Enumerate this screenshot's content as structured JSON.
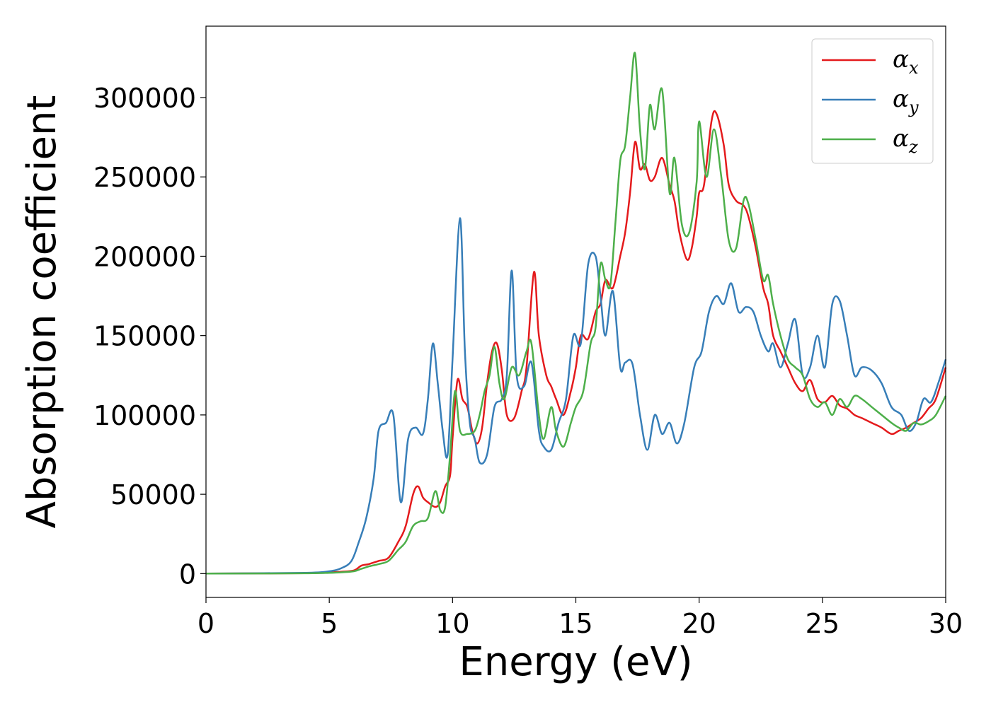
{
  "chart_data": {
    "type": "line",
    "title": "",
    "xlabel": "Energy (eV)",
    "ylabel": "Absorption coefficient",
    "xlim": [
      0,
      30
    ],
    "ylim": [
      -15000,
      345000
    ],
    "xticks": [
      0,
      5,
      10,
      15,
      20,
      25,
      30
    ],
    "xtick_labels": [
      "0",
      "5",
      "10",
      "15",
      "20",
      "25",
      "30"
    ],
    "yticks": [
      0,
      50000,
      100000,
      150000,
      200000,
      250000,
      300000
    ],
    "ytick_labels": [
      "0",
      "50000",
      "100000",
      "150000",
      "200000",
      "250000",
      "300000"
    ],
    "grid": false,
    "legend_position": "top-right",
    "series": [
      {
        "name": "α",
        "subscript": "x",
        "color": "#e41a1c",
        "x": [
          0,
          4,
          5,
          5.5,
          6,
          6.3,
          6.6,
          7,
          7.4,
          7.8,
          8.1,
          8.4,
          8.6,
          8.8,
          9,
          9.3,
          9.5,
          9.7,
          9.9,
          10,
          10.2,
          10.4,
          10.6,
          10.8,
          11,
          11.2,
          11.4,
          11.6,
          11.8,
          12,
          12.2,
          12.5,
          12.8,
          13,
          13.3,
          13.5,
          13.8,
          14,
          14.2,
          14.5,
          14.8,
          15,
          15.2,
          15.5,
          15.8,
          16,
          16.2,
          16.5,
          16.8,
          17,
          17.2,
          17.4,
          17.6,
          17.8,
          18,
          18.2,
          18.5,
          18.8,
          19,
          19.2,
          19.5,
          19.7,
          19.9,
          20,
          20.2,
          20.5,
          20.7,
          21,
          21.2,
          21.5,
          21.8,
          22,
          22.3,
          22.6,
          22.8,
          23,
          23.3,
          23.6,
          23.9,
          24.2,
          24.5,
          24.8,
          25.1,
          25.4,
          25.7,
          26,
          26.3,
          26.6,
          27,
          27.4,
          27.8,
          28.1,
          28.4,
          28.7,
          29,
          29.3,
          29.6,
          30
        ],
        "values": [
          0,
          300,
          800,
          1200,
          2000,
          5000,
          6000,
          8000,
          10000,
          20000,
          30000,
          50000,
          55000,
          48000,
          45000,
          42000,
          45000,
          55000,
          62000,
          85000,
          122000,
          110000,
          105000,
          90000,
          82000,
          92000,
          120000,
          140000,
          145000,
          128000,
          100000,
          98000,
          115000,
          130000,
          190000,
          150000,
          125000,
          118000,
          110000,
          100000,
          115000,
          130000,
          150000,
          148000,
          165000,
          170000,
          185000,
          180000,
          200000,
          215000,
          240000,
          272000,
          255000,
          258000,
          248000,
          250000,
          262000,
          245000,
          235000,
          215000,
          198000,
          205000,
          225000,
          240000,
          245000,
          285000,
          290000,
          270000,
          245000,
          235000,
          232000,
          225000,
          205000,
          180000,
          170000,
          150000,
          140000,
          130000,
          120000,
          115000,
          122000,
          110000,
          108000,
          112000,
          106000,
          104000,
          100000,
          98000,
          95000,
          92000,
          88000,
          90000,
          92000,
          95000,
          98000,
          104000,
          110000,
          130000
        ]
      },
      {
        "name": "α",
        "subscript": "y",
        "color": "#377eb8",
        "x": [
          0,
          4,
          5,
          5.5,
          5.9,
          6.2,
          6.5,
          6.8,
          7,
          7.3,
          7.6,
          7.9,
          8.2,
          8.5,
          8.8,
          9,
          9.2,
          9.4,
          9.6,
          9.8,
          10,
          10.3,
          10.5,
          10.7,
          10.9,
          11.1,
          11.4,
          11.7,
          12,
          12.2,
          12.4,
          12.6,
          12.9,
          13.2,
          13.5,
          13.7,
          14,
          14.3,
          14.6,
          14.9,
          15.2,
          15.5,
          15.8,
          16,
          16.2,
          16.5,
          16.8,
          17,
          17.3,
          17.6,
          17.9,
          18.2,
          18.5,
          18.8,
          19.1,
          19.4,
          19.8,
          20.1,
          20.4,
          20.7,
          21,
          21.3,
          21.6,
          21.9,
          22.2,
          22.5,
          22.8,
          23,
          23.3,
          23.6,
          23.9,
          24.2,
          24.5,
          24.8,
          25.1,
          25.4,
          25.7,
          26,
          26.3,
          26.6,
          27,
          27.4,
          27.8,
          28.2,
          28.5,
          28.8,
          29.1,
          29.4,
          29.7,
          30
        ],
        "values": [
          0,
          500,
          1500,
          3500,
          8000,
          20000,
          35000,
          60000,
          90000,
          95000,
          100000,
          45000,
          85000,
          92000,
          88000,
          110000,
          145000,
          120000,
          90000,
          75000,
          135000,
          224000,
          140000,
          95000,
          85000,
          70000,
          75000,
          105000,
          110000,
          125000,
          191000,
          125000,
          118000,
          133000,
          90000,
          80000,
          78000,
          95000,
          110000,
          150000,
          145000,
          195000,
          200000,
          175000,
          150000,
          178000,
          130000,
          133000,
          132000,
          100000,
          78000,
          100000,
          88000,
          95000,
          82000,
          95000,
          130000,
          140000,
          165000,
          175000,
          170000,
          183000,
          165000,
          168000,
          165000,
          150000,
          140000,
          145000,
          130000,
          145000,
          160000,
          125000,
          130000,
          150000,
          130000,
          170000,
          172000,
          150000,
          125000,
          130000,
          128000,
          120000,
          105000,
          100000,
          90000,
          95000,
          110000,
          108000,
          120000,
          135000
        ]
      },
      {
        "name": "α",
        "subscript": "z",
        "color": "#4daf4a",
        "x": [
          0,
          4,
          5,
          5.5,
          6,
          6.3,
          6.6,
          7,
          7.4,
          7.8,
          8.1,
          8.4,
          8.7,
          9,
          9.3,
          9.5,
          9.7,
          9.9,
          10.1,
          10.3,
          10.6,
          10.9,
          11.1,
          11.3,
          11.5,
          11.7,
          11.9,
          12.1,
          12.4,
          12.7,
          13,
          13.2,
          13.5,
          13.7,
          14,
          14.2,
          14.5,
          14.8,
          15,
          15.3,
          15.6,
          15.8,
          16,
          16.2,
          16.4,
          16.6,
          16.8,
          17,
          17.2,
          17.4,
          17.6,
          17.8,
          18,
          18.2,
          18.5,
          18.8,
          19,
          19.3,
          19.6,
          19.9,
          20,
          20.3,
          20.6,
          20.9,
          21.2,
          21.5,
          21.8,
          22,
          22.3,
          22.6,
          22.8,
          23,
          23.3,
          23.6,
          23.9,
          24.2,
          24.5,
          24.8,
          25.1,
          25.4,
          25.7,
          26,
          26.3,
          26.6,
          27,
          27.4,
          27.8,
          28.1,
          28.4,
          28.7,
          29,
          29.3,
          29.6,
          30
        ],
        "values": [
          0,
          200,
          500,
          800,
          1500,
          3000,
          4500,
          6000,
          8000,
          15000,
          20000,
          30000,
          33000,
          35000,
          52000,
          40000,
          42000,
          75000,
          115000,
          90000,
          88000,
          90000,
          100000,
          115000,
          125000,
          143000,
          120000,
          110000,
          130000,
          125000,
          140000,
          145000,
          100000,
          85000,
          105000,
          90000,
          80000,
          95000,
          105000,
          115000,
          145000,
          155000,
          195000,
          185000,
          182000,
          220000,
          260000,
          270000,
          300000,
          328000,
          280000,
          255000,
          295000,
          280000,
          305000,
          240000,
          262000,
          220000,
          215000,
          247000,
          285000,
          250000,
          280000,
          250000,
          210000,
          205000,
          235000,
          233000,
          210000,
          185000,
          188000,
          170000,
          150000,
          135000,
          130000,
          125000,
          110000,
          105000,
          108000,
          100000,
          110000,
          105000,
          112000,
          110000,
          105000,
          100000,
          95000,
          92000,
          90000,
          95000,
          94000,
          96000,
          100000,
          112000
        ]
      }
    ]
  }
}
